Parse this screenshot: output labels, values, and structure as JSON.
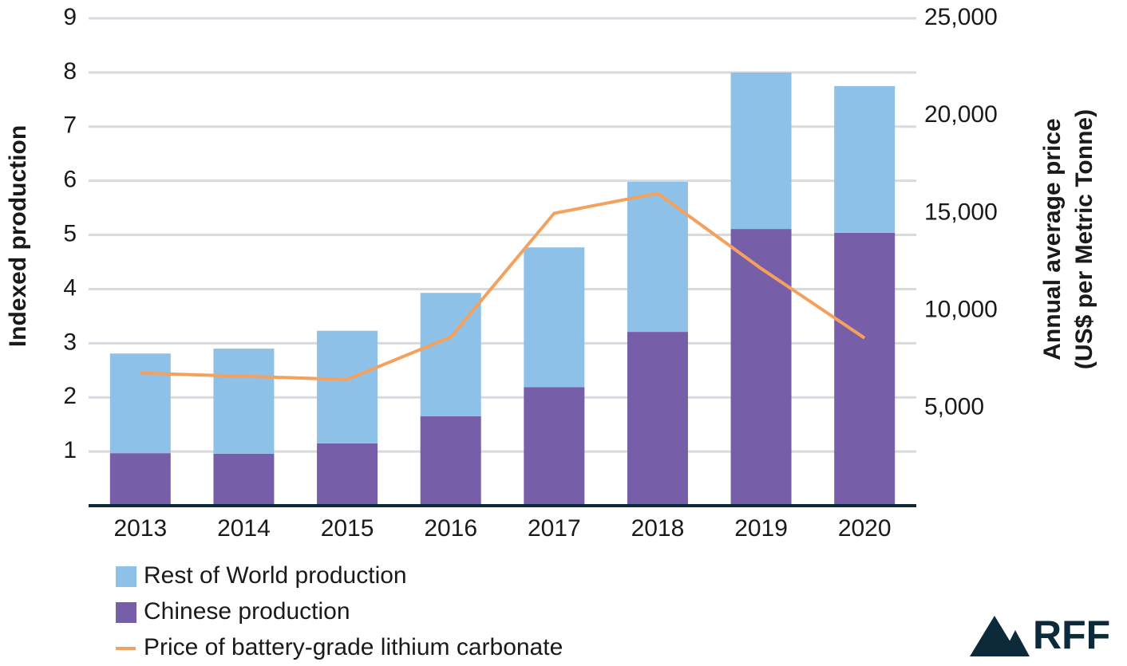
{
  "chart_data": {
    "type": "bar",
    "categories": [
      "2013",
      "2014",
      "2015",
      "2016",
      "2017",
      "2018",
      "2019",
      "2020"
    ],
    "series": [
      {
        "name": "Rest of World production",
        "color": "#8ec1e8",
        "values": [
          1.84,
          1.94,
          2.08,
          2.28,
          2.58,
          2.77,
          2.89,
          2.71
        ]
      },
      {
        "name": "Chinese production",
        "color": "#775ea8",
        "values": [
          0.97,
          0.96,
          1.15,
          1.65,
          2.19,
          3.21,
          5.11,
          5.04
        ]
      },
      {
        "name": "Price of battery-grade lithium carbonate",
        "color": "#f4a15d",
        "type": "line",
        "axis": "y2",
        "values": [
          6800,
          6640,
          6475,
          8650,
          15000,
          16025,
          12170,
          8600
        ]
      }
    ],
    "ylabel": "Indexed production",
    "y2label": [
      "Annual average price",
      "(US$ per Metric Tonne)"
    ],
    "ylim": [
      0,
      9
    ],
    "yticks": [
      1,
      2,
      3,
      4,
      5,
      6,
      7,
      8,
      9
    ],
    "y2lim": [
      0,
      25000
    ],
    "y2ticks": [
      {
        "value": 5000,
        "label": "5,000"
      },
      {
        "value": 10000,
        "label": "10,000"
      },
      {
        "value": 15000,
        "label": "15,000"
      },
      {
        "value": 20000,
        "label": "20,000"
      },
      {
        "value": 25000,
        "label": "25,000"
      }
    ],
    "grid": true,
    "stacked": true,
    "legend": "bottom-left"
  },
  "branding": "RFF"
}
